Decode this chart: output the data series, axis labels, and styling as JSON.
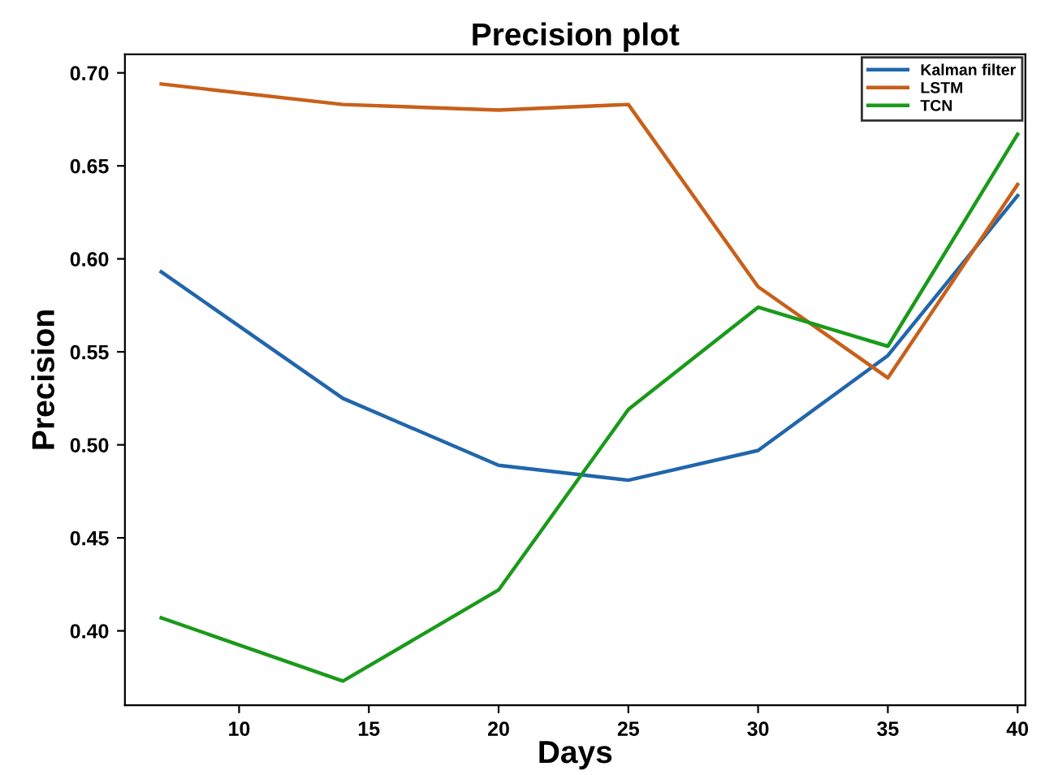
{
  "chart_data": {
    "type": "line",
    "title": "Precision plot",
    "xlabel": "Days",
    "ylabel": "Precision",
    "x": [
      7,
      14,
      20,
      25,
      30,
      35,
      40
    ],
    "series": [
      {
        "name": "Kalman filter",
        "color": "#2166ac",
        "values": [
          0.593,
          0.525,
          0.489,
          0.481,
          0.497,
          0.548,
          0.634
        ]
      },
      {
        "name": "LSTM",
        "color": "#c8601a",
        "values": [
          0.694,
          0.683,
          0.68,
          0.683,
          0.585,
          0.536,
          0.64
        ]
      },
      {
        "name": "TCN",
        "color": "#1a9a1a",
        "values": [
          0.407,
          0.373,
          0.422,
          0.519,
          0.574,
          0.553,
          0.667
        ]
      }
    ],
    "xlim": [
      5.6,
      40.3
    ],
    "xticks": [
      10,
      15,
      20,
      25,
      30,
      35,
      40
    ],
    "ylim": [
      0.36,
      0.71
    ],
    "yticks": [
      {
        "value": 0.4,
        "label": "0.40"
      },
      {
        "value": 0.45,
        "label": "0.45"
      },
      {
        "value": 0.5,
        "label": "0.50"
      },
      {
        "value": 0.55,
        "label": "0.55"
      },
      {
        "value": 0.6,
        "label": "0.60"
      },
      {
        "value": 0.65,
        "label": "0.65"
      },
      {
        "value": 0.7,
        "label": "0.70"
      }
    ],
    "grid": false,
    "legend": "top right",
    "marker": "none",
    "line_style": "solid"
  }
}
